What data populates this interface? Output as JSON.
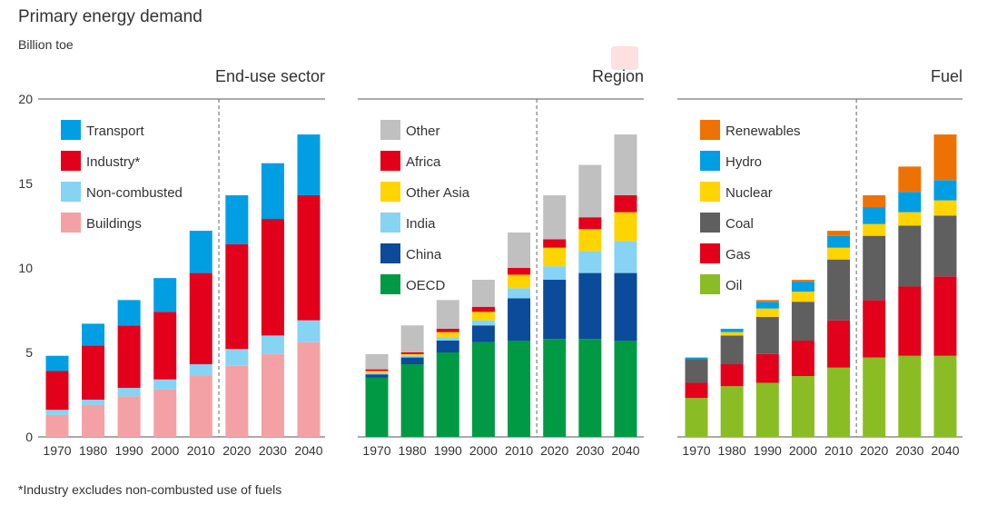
{
  "title": "Primary energy demand",
  "subtitle": "Billion toe",
  "footnote": "*Industry excludes non-combusted use of fuels",
  "chart_data": [
    {
      "type": "bar",
      "stacked": true,
      "title": "End-use sector",
      "ylim": [
        0,
        20
      ],
      "yticks": [
        "0",
        "5",
        "10",
        "15",
        "20"
      ],
      "categories": [
        "1970",
        "1980",
        "1990",
        "2000",
        "2010",
        "2020",
        "2030",
        "2040"
      ],
      "projection_divider_between": [
        "2010",
        "2020"
      ],
      "grid": false,
      "legend_position": "top-left",
      "series": [
        {
          "name": "Buildings",
          "color": "#f4a1a5",
          "values": [
            1.3,
            1.9,
            2.4,
            2.8,
            3.6,
            4.2,
            4.9,
            5.6
          ]
        },
        {
          "name": "Non-combusted",
          "color": "#87d3f3",
          "values": [
            0.3,
            0.3,
            0.5,
            0.6,
            0.7,
            1.0,
            1.1,
            1.3
          ]
        },
        {
          "name": "Industry*",
          "color": "#e2001a",
          "values": [
            2.3,
            3.2,
            3.7,
            4.0,
            5.4,
            6.2,
            6.9,
            7.4
          ]
        },
        {
          "name": "Transport",
          "color": "#009fe3",
          "values": [
            0.9,
            1.3,
            1.5,
            2.0,
            2.5,
            2.9,
            3.3,
            3.6
          ]
        }
      ]
    },
    {
      "type": "bar",
      "stacked": true,
      "title": "Region",
      "ylim": [
        0,
        20
      ],
      "categories": [
        "1970",
        "1980",
        "1990",
        "2000",
        "2010",
        "2020",
        "2030",
        "2040"
      ],
      "projection_divider_between": [
        "2010",
        "2020"
      ],
      "grid": false,
      "legend_position": "top-left",
      "series": [
        {
          "name": "OECD",
          "color": "#009a44",
          "values": [
            3.5,
            4.3,
            5.0,
            5.6,
            5.7,
            5.8,
            5.8,
            5.7
          ]
        },
        {
          "name": "China",
          "color": "#0c4a9a",
          "values": [
            0.2,
            0.4,
            0.7,
            1.0,
            2.5,
            3.5,
            3.9,
            4.0
          ]
        },
        {
          "name": "India",
          "color": "#87d3f3",
          "values": [
            0.1,
            0.1,
            0.2,
            0.3,
            0.6,
            0.8,
            1.3,
            1.9
          ]
        },
        {
          "name": "Other Asia",
          "color": "#ffd400",
          "values": [
            0.1,
            0.1,
            0.3,
            0.5,
            0.8,
            1.1,
            1.3,
            1.7
          ]
        },
        {
          "name": "Africa",
          "color": "#e2001a",
          "values": [
            0.1,
            0.1,
            0.2,
            0.3,
            0.4,
            0.5,
            0.7,
            1.0
          ]
        },
        {
          "name": "Other",
          "color": "#c0c0c0",
          "values": [
            0.9,
            1.6,
            1.7,
            1.6,
            2.1,
            2.6,
            3.1,
            3.6
          ]
        }
      ]
    },
    {
      "type": "bar",
      "stacked": true,
      "title": "Fuel",
      "ylim": [
        0,
        20
      ],
      "categories": [
        "1970",
        "1980",
        "1990",
        "2000",
        "2010",
        "2020",
        "2030",
        "2040"
      ],
      "projection_divider_between": [
        "2010",
        "2020"
      ],
      "grid": false,
      "legend_position": "top-left",
      "series": [
        {
          "name": "Oil",
          "color": "#8abd24",
          "values": [
            2.3,
            3.0,
            3.2,
            3.6,
            4.1,
            4.7,
            4.8,
            4.8
          ]
        },
        {
          "name": "Gas",
          "color": "#e2001a",
          "values": [
            0.9,
            1.3,
            1.7,
            2.1,
            2.8,
            3.4,
            4.1,
            4.7
          ]
        },
        {
          "name": "Coal",
          "color": "#5f5f5f",
          "values": [
            1.4,
            1.7,
            2.2,
            2.3,
            3.6,
            3.8,
            3.6,
            3.6
          ]
        },
        {
          "name": "Nuclear",
          "color": "#ffd400",
          "values": [
            0.0,
            0.2,
            0.5,
            0.6,
            0.7,
            0.7,
            0.8,
            0.9
          ]
        },
        {
          "name": "Hydro",
          "color": "#009fe3",
          "values": [
            0.1,
            0.2,
            0.4,
            0.6,
            0.7,
            1.0,
            1.2,
            1.2
          ]
        },
        {
          "name": "Renewables",
          "color": "#ee7203",
          "values": [
            0.0,
            0.0,
            0.1,
            0.1,
            0.3,
            0.7,
            1.5,
            2.7
          ]
        }
      ]
    }
  ]
}
